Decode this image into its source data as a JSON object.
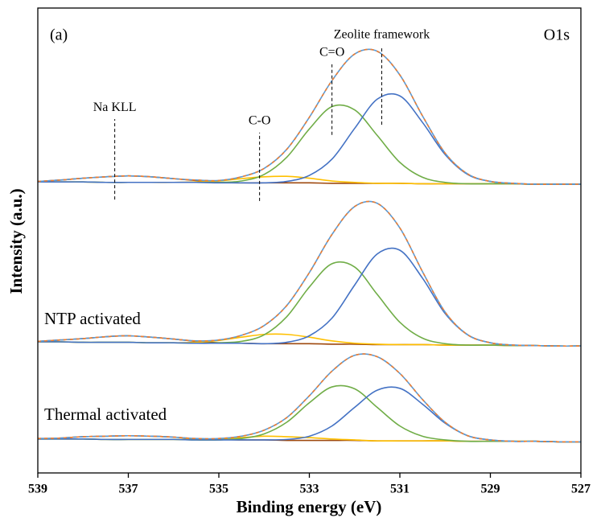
{
  "chart_data": {
    "type": "line",
    "x_label": "Binding energy (eV)",
    "y_label": "Intensity (a.u.)",
    "panel_tag": "(a)",
    "core_level": "O1s",
    "x": [
      539,
      538.5,
      538,
      537.5,
      537,
      536.5,
      536,
      535.5,
      535,
      534.5,
      534,
      533.5,
      533,
      532.5,
      532,
      531.5,
      531,
      530.5,
      530,
      529.5,
      529,
      528.5,
      528,
      527.5,
      527
    ],
    "xlim": [
      539,
      527
    ],
    "xticks": [
      539,
      537,
      535,
      533,
      531,
      529,
      527
    ],
    "ylim": [
      0,
      100
    ],
    "panels": [
      {
        "series": [
          {
            "color": "#9e480e",
            "values": [
              62.7,
              63.0,
              63.4,
              63.7,
              63.9,
              63.7,
              63.3,
              62.9,
              62.5,
              62.4,
              62.4,
              62.4,
              62.4,
              62.3,
              62.3,
              62.3,
              62.3,
              62.2,
              62.2,
              62.2,
              62.2,
              62.2,
              62.1,
              62.1,
              62.1
            ]
          },
          {
            "color": "#ffc000",
            "values": [
              62.6,
              62.6,
              62.6,
              62.5,
              62.5,
              62.5,
              62.5,
              62.6,
              62.8,
              63.3,
              63.7,
              63.8,
              63.4,
              62.8,
              62.5,
              62.3,
              62.3,
              62.2,
              62.2,
              62.2,
              62.2,
              62.2,
              62.1,
              62.1,
              62.1
            ]
          },
          {
            "color": "#70ad47",
            "values": [
              62.6,
              62.6,
              62.6,
              62.5,
              62.5,
              62.5,
              62.5,
              62.5,
              62.5,
              62.8,
              64.2,
              67.9,
              74.0,
              78.8,
              78.1,
              72.6,
              66.8,
              63.6,
              62.5,
              62.2,
              62.2,
              62.2,
              62.1,
              62.1,
              62.1
            ]
          },
          {
            "color": "#4472c4",
            "values": [
              62.6,
              62.6,
              62.6,
              62.5,
              62.5,
              62.5,
              62.5,
              62.5,
              62.4,
              62.4,
              62.4,
              62.7,
              64.0,
              67.5,
              74.1,
              80.4,
              81.1,
              75.4,
              68.5,
              64.2,
              62.7,
              62.3,
              62.1,
              62.1,
              62.1
            ]
          },
          {
            "color": "#5b9bd5",
            "dash_color": "#ed7d31",
            "values": [
              62.7,
              63.0,
              63.4,
              63.7,
              63.9,
              63.7,
              63.3,
              63.0,
              62.9,
              63.7,
              65.5,
              69.6,
              76.5,
              84.4,
              90.1,
              90.7,
              85.6,
              76.8,
              68.8,
              64.3,
              62.7,
              62.3,
              62.1,
              62.1,
              62.1
            ]
          }
        ]
      },
      {
        "label": "NTP activated",
        "series": [
          {
            "color": "#9e480e",
            "values": [
              28.3,
              28.6,
              28.9,
              29.3,
              29.5,
              29.2,
              28.8,
              28.3,
              28.0,
              27.9,
              27.8,
              27.8,
              27.8,
              27.7,
              27.7,
              27.6,
              27.6,
              27.6,
              27.5,
              27.5,
              27.5,
              27.4,
              27.4,
              27.3,
              27.3
            ]
          },
          {
            "color": "#ffc000",
            "values": [
              28.2,
              28.2,
              28.1,
              28.1,
              28.1,
              28.0,
              28.0,
              28.1,
              28.5,
              29.2,
              29.8,
              29.8,
              29.2,
              28.4,
              27.9,
              27.7,
              27.6,
              27.6,
              27.5,
              27.5,
              27.5,
              27.4,
              27.4,
              27.3,
              27.3
            ]
          },
          {
            "color": "#70ad47",
            "values": [
              28.2,
              28.2,
              28.1,
              28.1,
              28.1,
              28.0,
              28.0,
              27.9,
              28.0,
              28.3,
              29.7,
              33.6,
              40.0,
              45.0,
              44.3,
              38.4,
              32.4,
              29.0,
              27.8,
              27.5,
              27.5,
              27.4,
              27.4,
              27.3,
              27.3
            ]
          },
          {
            "color": "#4472c4",
            "values": [
              28.2,
              28.2,
              28.1,
              28.1,
              28.1,
              28.0,
              28.0,
              27.9,
              27.9,
              27.9,
              27.8,
              28.1,
              29.5,
              33.3,
              40.4,
              47.1,
              47.9,
              41.9,
              34.3,
              29.7,
              28.0,
              27.5,
              27.4,
              27.3,
              27.3
            ]
          },
          {
            "color": "#5b9bd5",
            "dash_color": "#ed7d31",
            "values": [
              28.3,
              28.6,
              28.9,
              29.3,
              29.5,
              29.2,
              28.8,
              28.4,
              28.6,
              29.6,
              31.7,
              36.0,
              43.1,
              51.3,
              57.3,
              58.0,
              52.7,
              43.3,
              34.6,
              29.7,
              28.0,
              27.5,
              27.4,
              27.3,
              27.3
            ]
          }
        ]
      },
      {
        "label": "Thermal activated",
        "series": [
          {
            "color": "#9e480e",
            "values": [
              7.4,
              7.5,
              7.8,
              7.9,
              8.0,
              7.9,
              7.7,
              7.3,
              7.2,
              7.1,
              7.1,
              7.0,
              7.0,
              7.0,
              7.0,
              6.9,
              6.9,
              6.9,
              6.9,
              6.8,
              6.8,
              6.8,
              6.8,
              6.7,
              6.7
            ]
          },
          {
            "color": "#ffc000",
            "values": [
              7.3,
              7.3,
              7.3,
              7.2,
              7.2,
              7.2,
              7.2,
              7.2,
              7.3,
              7.6,
              7.9,
              7.8,
              7.6,
              7.3,
              7.1,
              6.9,
              6.9,
              6.9,
              6.9,
              6.8,
              6.8,
              6.8,
              6.8,
              6.7,
              6.7
            ]
          },
          {
            "color": "#70ad47",
            "values": [
              7.3,
              7.3,
              7.3,
              7.2,
              7.2,
              7.2,
              7.2,
              7.1,
              7.1,
              7.4,
              8.4,
              10.9,
              15.1,
              18.5,
              18.1,
              14.1,
              10.1,
              7.9,
              7.1,
              6.8,
              6.8,
              6.8,
              6.8,
              6.7,
              6.7
            ]
          },
          {
            "color": "#4472c4",
            "values": [
              7.3,
              7.3,
              7.3,
              7.2,
              7.2,
              7.2,
              7.2,
              7.1,
              7.1,
              7.1,
              7.1,
              7.2,
              7.9,
              10.1,
              14.1,
              17.8,
              18.2,
              14.8,
              10.7,
              8.0,
              7.1,
              6.8,
              6.8,
              6.7,
              6.7
            ]
          },
          {
            "color": "#5b9bd5",
            "dash_color": "#ed7d31",
            "values": [
              7.4,
              7.5,
              7.8,
              7.9,
              8.0,
              7.9,
              7.7,
              7.4,
              7.4,
              7.9,
              9.2,
              11.9,
              16.6,
              21.9,
              25.3,
              25.0,
              21.4,
              15.8,
              10.9,
              8.0,
              7.1,
              6.8,
              6.8,
              6.7,
              6.7
            ]
          }
        ]
      }
    ],
    "annotations": [
      {
        "text": "Na KLL",
        "x": 537.3,
        "y": [
          58.8,
          76.1
        ]
      },
      {
        "text": "C-O",
        "x": 534.1,
        "y": [
          58.5,
          73.2
        ]
      },
      {
        "text": "C=O",
        "x": 532.5,
        "y": [
          72.7,
          87.9
        ]
      },
      {
        "text": "Zeolite framework",
        "x": 531.4,
        "y": [
          74.9,
          91.7
        ]
      }
    ]
  }
}
